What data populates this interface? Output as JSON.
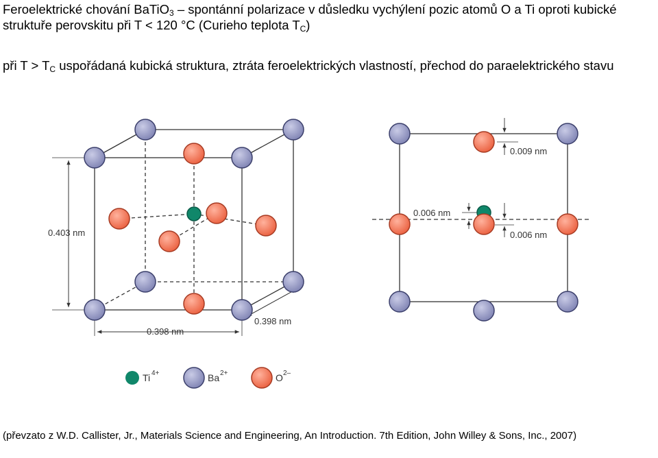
{
  "title": {
    "part1": "Feroelektrické chování BaTiO",
    "sub1": "3",
    "part2": " – spontánní polarizace v důsledku vychýlení pozic atomů O a Ti oproti kubické struktuře perovskitu při T < 120 °C (Curieho teplota T",
    "sub2": "C",
    "part3": ")"
  },
  "note": {
    "part1": "při T > T",
    "sub": "C",
    "part2": " uspořádaná kubická struktura, ztráta feroelektrických vlastností, přechod do paraelektrického stavu"
  },
  "diagram": {
    "dims": {
      "height": "0.403 nm",
      "width": "0.398 nm",
      "depth": "0.398 nm",
      "o_shift": "0.009 nm",
      "ti_shift": "0.006 nm",
      "o_side_shift": "0.006 nm"
    },
    "legend": {
      "ti": {
        "label": "Ti",
        "charge": "4+"
      },
      "ba": {
        "label": "Ba",
        "charge": "2+"
      },
      "o": {
        "label": "O",
        "charge": "2–"
      }
    },
    "colors": {
      "ba_fill": "#9a9dc4",
      "ba_stroke": "#3b3f6b",
      "o_fill": "#f37a5c",
      "o_stroke": "#a63a22",
      "ti_fill": "#10876a"
    }
  },
  "citation": "(převzato z W.D. Callister, Jr., Materials Science and Engineering, An Introduction. 7th Edition, John Willey & Sons, Inc., 2007)"
}
